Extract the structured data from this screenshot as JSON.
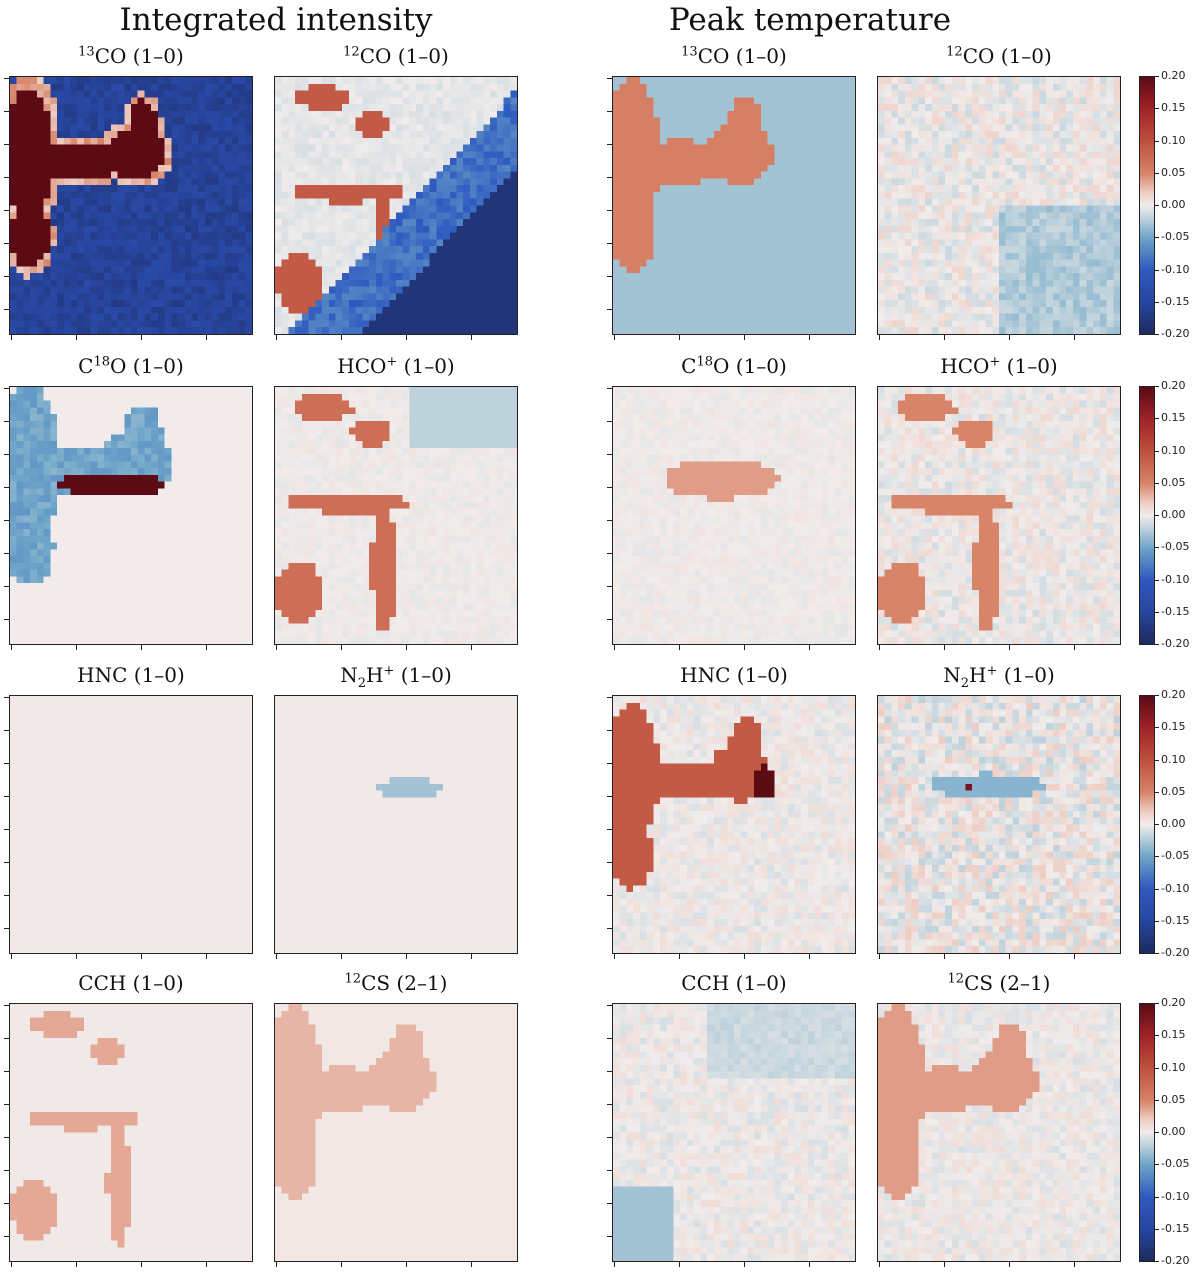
{
  "sections": [
    {
      "title": "Integrated intensity"
    },
    {
      "title": "Peak temperature"
    }
  ],
  "colorbar": {
    "colormap": "diverging: #1c2a5e (min) → #2f59c0 → #7fb0cc → #f1eceb (0) → #d78468 → #b8302a → #5c0a14 (max)",
    "tick_labels": [
      "0.20",
      "0.15",
      "0.10",
      "0.05",
      "0.00",
      "-0.05",
      "-0.10",
      "-0.15",
      "-0.20"
    ],
    "range": [
      -0.2,
      0.2
    ]
  },
  "chart_data": [
    {
      "type": "heatmap",
      "section": "Integrated intensity",
      "title_main": "CO (1–0)",
      "title_sup": "13",
      "pattern": "co13",
      "strength": 1.0,
      "clim": [
        -0.2,
        0.2
      ],
      "description_hint": "large positive filament band on blue background"
    },
    {
      "type": "heatmap",
      "section": "Integrated intensity",
      "title_main": "CO (1–0)",
      "title_sup": "12",
      "pattern": "co12",
      "strength": 1.0,
      "clim": [
        -0.2,
        0.2
      ]
    },
    {
      "type": "heatmap",
      "section": "Peak temperature",
      "title_main": "CO (1–0)",
      "title_sup": "13",
      "pattern": "co13pk",
      "strength": 1.0,
      "clim": [
        -0.2,
        0.2
      ]
    },
    {
      "type": "heatmap",
      "section": "Peak temperature",
      "title_main": "CO (1–0)",
      "title_sup": "12",
      "pattern": "co12pk",
      "strength": 1.0,
      "clim": [
        -0.2,
        0.2
      ]
    },
    {
      "type": "heatmap",
      "section": "Integrated intensity",
      "title_main": "O (1–0)",
      "title_pre": "C",
      "title_sup": "18",
      "pattern": "c18o",
      "strength": 1.0,
      "clim": [
        -0.2,
        0.2
      ]
    },
    {
      "type": "heatmap",
      "section": "Integrated intensity",
      "title_main": " (1–0)",
      "title_pre": "HCO",
      "title_sup": "+",
      "pattern": "hco",
      "strength": 1.0,
      "clim": [
        -0.2,
        0.2
      ]
    },
    {
      "type": "heatmap",
      "section": "Peak temperature",
      "title_main": "O (1–0)",
      "title_pre": "C",
      "title_sup": "18",
      "pattern": "c18opk",
      "strength": 1.0,
      "clim": [
        -0.2,
        0.2
      ]
    },
    {
      "type": "heatmap",
      "section": "Peak temperature",
      "title_main": " (1–0)",
      "title_pre": "HCO",
      "title_sup": "+",
      "pattern": "hcopk",
      "strength": 1.0,
      "clim": [
        -0.2,
        0.2
      ]
    },
    {
      "type": "heatmap",
      "section": "Integrated intensity",
      "title_main": "HNC (1–0)",
      "pattern": "hnc",
      "strength": 1.0,
      "clim": [
        -0.2,
        0.2
      ]
    },
    {
      "type": "heatmap",
      "section": "Integrated intensity",
      "title_main": " (1–0)",
      "title_pre": "N",
      "title_sub": "2",
      "title_mid": "H",
      "title_sup": "+",
      "pattern": "n2h",
      "strength": 1.0,
      "clim": [
        -0.2,
        0.2
      ]
    },
    {
      "type": "heatmap",
      "section": "Peak temperature",
      "title_main": "HNC (1–0)",
      "pattern": "hncpk",
      "strength": 1.0,
      "clim": [
        -0.2,
        0.2
      ]
    },
    {
      "type": "heatmap",
      "section": "Peak temperature",
      "title_main": " (1–0)",
      "title_pre": "N",
      "title_sub": "2",
      "title_mid": "H",
      "title_sup": "+",
      "pattern": "n2hpk",
      "strength": 1.0,
      "clim": [
        -0.2,
        0.2
      ]
    },
    {
      "type": "heatmap",
      "section": "Integrated intensity",
      "title_main": "CCH (1–0)",
      "pattern": "cch",
      "strength": 1.0,
      "clim": [
        -0.2,
        0.2
      ]
    },
    {
      "type": "heatmap",
      "section": "Integrated intensity",
      "title_main": "CS (2–1)",
      "title_sup": "12",
      "pattern": "cs",
      "strength": 1.0,
      "clim": [
        -0.2,
        0.2
      ]
    },
    {
      "type": "heatmap",
      "section": "Peak temperature",
      "title_main": "CCH (1–0)",
      "pattern": "cchpk",
      "strength": 1.0,
      "clim": [
        -0.2,
        0.2
      ]
    },
    {
      "type": "heatmap",
      "section": "Peak temperature",
      "title_main": "CS (2–1)",
      "title_sup": "12",
      "pattern": "cspk",
      "strength": 1.0,
      "clim": [
        -0.2,
        0.2
      ]
    }
  ]
}
